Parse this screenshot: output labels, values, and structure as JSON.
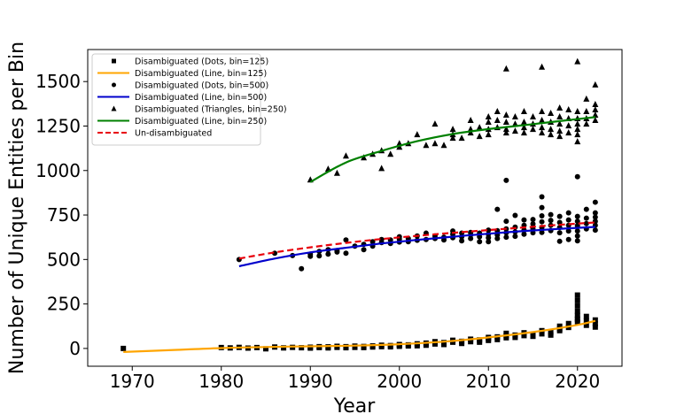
{
  "chart_data": {
    "type": "scatter",
    "title": "",
    "xlabel": "Year",
    "ylabel": "Number of Unique Entities per Bin",
    "xlim": [
      1965,
      2025
    ],
    "ylim": [
      -100,
      1680
    ],
    "xticks": [
      1970,
      1980,
      1990,
      2000,
      2010,
      2020
    ],
    "yticks": [
      0,
      250,
      500,
      750,
      1000,
      1250,
      1500
    ],
    "legend_position": "top-left",
    "colors": {
      "dots": "#000000",
      "line125": "#ffa500",
      "line500": "#0000cc",
      "line250": "#008000",
      "undisambiguated": "#e8000b"
    },
    "series": [
      {
        "name": "Disambiguated (Dots, bin=125)",
        "kind": "square-markers",
        "points": [
          [
            1969,
            0
          ],
          [
            1980,
            5
          ],
          [
            1981,
            3
          ],
          [
            1982,
            6
          ],
          [
            1983,
            2
          ],
          [
            1984,
            5
          ],
          [
            1985,
            -2
          ],
          [
            1986,
            8
          ],
          [
            1987,
            3
          ],
          [
            1988,
            6
          ],
          [
            1989,
            4
          ],
          [
            1990,
            7
          ],
          [
            1990,
            2
          ],
          [
            1991,
            10
          ],
          [
            1991,
            5
          ],
          [
            1992,
            9
          ],
          [
            1992,
            3
          ],
          [
            1993,
            12
          ],
          [
            1993,
            6
          ],
          [
            1994,
            10
          ],
          [
            1994,
            4
          ],
          [
            1995,
            13
          ],
          [
            1995,
            6
          ],
          [
            1996,
            11
          ],
          [
            1996,
            5
          ],
          [
            1997,
            14
          ],
          [
            1997,
            8
          ],
          [
            1998,
            18
          ],
          [
            1998,
            10
          ],
          [
            1999,
            16
          ],
          [
            1999,
            9
          ],
          [
            2000,
            22
          ],
          [
            2000,
            12
          ],
          [
            2000,
            18
          ],
          [
            2001,
            20
          ],
          [
            2001,
            14
          ],
          [
            2002,
            26
          ],
          [
            2002,
            15
          ],
          [
            2003,
            30
          ],
          [
            2003,
            18
          ],
          [
            2004,
            38
          ],
          [
            2004,
            25
          ],
          [
            2005,
            33
          ],
          [
            2005,
            22
          ],
          [
            2006,
            46
          ],
          [
            2006,
            35
          ],
          [
            2007,
            40
          ],
          [
            2007,
            28
          ],
          [
            2008,
            52
          ],
          [
            2008,
            38
          ],
          [
            2009,
            48
          ],
          [
            2009,
            35
          ],
          [
            2010,
            62
          ],
          [
            2010,
            45
          ],
          [
            2010,
            55
          ],
          [
            2011,
            65
          ],
          [
            2011,
            50
          ],
          [
            2012,
            85
          ],
          [
            2012,
            60
          ],
          [
            2012,
            72
          ],
          [
            2013,
            75
          ],
          [
            2013,
            62
          ],
          [
            2014,
            88
          ],
          [
            2014,
            72
          ],
          [
            2015,
            78
          ],
          [
            2015,
            68
          ],
          [
            2016,
            100
          ],
          [
            2016,
            82
          ],
          [
            2017,
            90
          ],
          [
            2017,
            75
          ],
          [
            2018,
            125
          ],
          [
            2018,
            100
          ],
          [
            2018,
            110
          ],
          [
            2019,
            140
          ],
          [
            2019,
            118
          ],
          [
            2020,
            300
          ],
          [
            2020,
            270
          ],
          [
            2020,
            240
          ],
          [
            2020,
            210
          ],
          [
            2020,
            185
          ],
          [
            2020,
            165
          ],
          [
            2020,
            150
          ],
          [
            2021,
            180
          ],
          [
            2021,
            155
          ],
          [
            2021,
            130
          ],
          [
            2022,
            160
          ],
          [
            2022,
            140
          ],
          [
            2022,
            120
          ]
        ]
      },
      {
        "name": "Disambiguated (Line, bin=125)",
        "kind": "line",
        "x": [
          1969,
          1975,
          1980,
          1985,
          1990,
          1995,
          2000,
          2005,
          2010,
          2015,
          2020,
          2022
        ],
        "y": [
          -20,
          -8,
          2,
          8,
          12,
          16,
          24,
          38,
          62,
          92,
          132,
          155
        ]
      },
      {
        "name": "Disambiguated (Dots, bin=500)",
        "kind": "circle-markers",
        "points": [
          [
            1982,
            500
          ],
          [
            1986,
            535
          ],
          [
            1988,
            522
          ],
          [
            1989,
            448
          ],
          [
            1990,
            530
          ],
          [
            1990,
            518
          ],
          [
            1991,
            545
          ],
          [
            1991,
            520
          ],
          [
            1992,
            530
          ],
          [
            1992,
            555
          ],
          [
            1993,
            542
          ],
          [
            1993,
            550
          ],
          [
            1994,
            610
          ],
          [
            1994,
            535
          ],
          [
            1995,
            575
          ],
          [
            1996,
            555
          ],
          [
            1996,
            585
          ],
          [
            1997,
            600
          ],
          [
            1997,
            575
          ],
          [
            1998,
            595
          ],
          [
            1998,
            612
          ],
          [
            1999,
            610
          ],
          [
            1999,
            590
          ],
          [
            2000,
            615
          ],
          [
            2000,
            598
          ],
          [
            2000,
            628
          ],
          [
            2001,
            600
          ],
          [
            2001,
            618
          ],
          [
            2002,
            608
          ],
          [
            2002,
            632
          ],
          [
            2003,
            648
          ],
          [
            2003,
            612
          ],
          [
            2004,
            632
          ],
          [
            2004,
            618
          ],
          [
            2005,
            625
          ],
          [
            2005,
            610
          ],
          [
            2006,
            642
          ],
          [
            2006,
            622
          ],
          [
            2006,
            660
          ],
          [
            2007,
            648
          ],
          [
            2007,
            628
          ],
          [
            2007,
            605
          ],
          [
            2008,
            638
          ],
          [
            2008,
            652
          ],
          [
            2008,
            618
          ],
          [
            2009,
            648
          ],
          [
            2009,
            628
          ],
          [
            2009,
            600
          ],
          [
            2010,
            665
          ],
          [
            2010,
            642
          ],
          [
            2010,
            622
          ],
          [
            2010,
            600
          ],
          [
            2011,
            782
          ],
          [
            2011,
            662
          ],
          [
            2011,
            638
          ],
          [
            2011,
            618
          ],
          [
            2012,
            945
          ],
          [
            2012,
            715
          ],
          [
            2012,
            672
          ],
          [
            2012,
            650
          ],
          [
            2012,
            625
          ],
          [
            2013,
            748
          ],
          [
            2013,
            682
          ],
          [
            2013,
            655
          ],
          [
            2013,
            630
          ],
          [
            2014,
            722
          ],
          [
            2014,
            692
          ],
          [
            2014,
            665
          ],
          [
            2014,
            642
          ],
          [
            2015,
            725
          ],
          [
            2015,
            700
          ],
          [
            2015,
            672
          ],
          [
            2015,
            650
          ],
          [
            2016,
            852
          ],
          [
            2016,
            792
          ],
          [
            2016,
            745
          ],
          [
            2016,
            712
          ],
          [
            2016,
            680
          ],
          [
            2016,
            652
          ],
          [
            2017,
            752
          ],
          [
            2017,
            720
          ],
          [
            2017,
            692
          ],
          [
            2017,
            662
          ],
          [
            2018,
            742
          ],
          [
            2018,
            708
          ],
          [
            2018,
            680
          ],
          [
            2018,
            650
          ],
          [
            2018,
            602
          ],
          [
            2019,
            762
          ],
          [
            2019,
            722
          ],
          [
            2019,
            692
          ],
          [
            2019,
            660
          ],
          [
            2019,
            612
          ],
          [
            2020,
            965
          ],
          [
            2020,
            742
          ],
          [
            2020,
            715
          ],
          [
            2020,
            690
          ],
          [
            2020,
            660
          ],
          [
            2020,
            632
          ],
          [
            2020,
            605
          ],
          [
            2021,
            782
          ],
          [
            2021,
            732
          ],
          [
            2021,
            702
          ],
          [
            2021,
            672
          ],
          [
            2022,
            822
          ],
          [
            2022,
            762
          ],
          [
            2022,
            738
          ],
          [
            2022,
            715
          ],
          [
            2022,
            692
          ],
          [
            2022,
            665
          ]
        ]
      },
      {
        "name": "Disambiguated (Line, bin=500)",
        "kind": "line",
        "x": [
          1982,
          1986,
          1990,
          1994,
          1998,
          2002,
          2006,
          2010,
          2014,
          2018,
          2022
        ],
        "y": [
          462,
          505,
          540,
          566,
          590,
          610,
          628,
          645,
          660,
          672,
          683
        ]
      },
      {
        "name": "Disambiguated (Triangles, bin=250)",
        "kind": "triangle-markers",
        "points": [
          [
            1990,
            948
          ],
          [
            1992,
            1008
          ],
          [
            1993,
            985
          ],
          [
            1994,
            1082
          ],
          [
            1996,
            1072
          ],
          [
            1997,
            1092
          ],
          [
            1998,
            1012
          ],
          [
            1998,
            1112
          ],
          [
            1999,
            1092
          ],
          [
            2000,
            1132
          ],
          [
            2000,
            1152
          ],
          [
            2001,
            1152
          ],
          [
            2002,
            1202
          ],
          [
            2003,
            1142
          ],
          [
            2004,
            1262
          ],
          [
            2004,
            1152
          ],
          [
            2005,
            1142
          ],
          [
            2006,
            1232
          ],
          [
            2006,
            1202
          ],
          [
            2006,
            1182
          ],
          [
            2007,
            1182
          ],
          [
            2008,
            1282
          ],
          [
            2008,
            1232
          ],
          [
            2008,
            1212
          ],
          [
            2009,
            1242
          ],
          [
            2009,
            1192
          ],
          [
            2010,
            1302
          ],
          [
            2010,
            1272
          ],
          [
            2010,
            1232
          ],
          [
            2010,
            1202
          ],
          [
            2011,
            1332
          ],
          [
            2011,
            1282
          ],
          [
            2011,
            1242
          ],
          [
            2012,
            1572
          ],
          [
            2012,
            1312
          ],
          [
            2012,
            1272
          ],
          [
            2012,
            1232
          ],
          [
            2012,
            1212
          ],
          [
            2013,
            1302
          ],
          [
            2013,
            1262
          ],
          [
            2013,
            1222
          ],
          [
            2014,
            1332
          ],
          [
            2014,
            1272
          ],
          [
            2014,
            1242
          ],
          [
            2014,
            1212
          ],
          [
            2015,
            1302
          ],
          [
            2015,
            1262
          ],
          [
            2015,
            1232
          ],
          [
            2016,
            1582
          ],
          [
            2016,
            1332
          ],
          [
            2016,
            1282
          ],
          [
            2016,
            1242
          ],
          [
            2016,
            1212
          ],
          [
            2017,
            1322
          ],
          [
            2017,
            1272
          ],
          [
            2017,
            1232
          ],
          [
            2017,
            1202
          ],
          [
            2018,
            1352
          ],
          [
            2018,
            1302
          ],
          [
            2018,
            1262
          ],
          [
            2018,
            1222
          ],
          [
            2018,
            1192
          ],
          [
            2019,
            1342
          ],
          [
            2019,
            1292
          ],
          [
            2019,
            1252
          ],
          [
            2019,
            1212
          ],
          [
            2020,
            1612
          ],
          [
            2020,
            1332
          ],
          [
            2020,
            1292
          ],
          [
            2020,
            1262
          ],
          [
            2020,
            1232
          ],
          [
            2020,
            1202
          ],
          [
            2020,
            1162
          ],
          [
            2021,
            1402
          ],
          [
            2021,
            1332
          ],
          [
            2021,
            1292
          ],
          [
            2021,
            1262
          ],
          [
            2022,
            1482
          ],
          [
            2022,
            1372
          ],
          [
            2022,
            1342
          ],
          [
            2022,
            1312
          ],
          [
            2022,
            1282
          ]
        ]
      },
      {
        "name": "Disambiguated (Line, bin=250)",
        "kind": "line",
        "x": [
          1990,
          1994,
          1998,
          2002,
          2006,
          2010,
          2014,
          2018,
          2022
        ],
        "y": [
          935,
          1045,
          1110,
          1165,
          1205,
          1233,
          1255,
          1278,
          1300
        ]
      },
      {
        "name": "Un-disambiguated",
        "kind": "dashed-line",
        "x": [
          1982,
          1986,
          1990,
          1994,
          1998,
          2002,
          2006,
          2010,
          2014,
          2018,
          2022
        ],
        "y": [
          505,
          540,
          568,
          593,
          615,
          633,
          650,
          665,
          680,
          695,
          708
        ]
      }
    ]
  }
}
